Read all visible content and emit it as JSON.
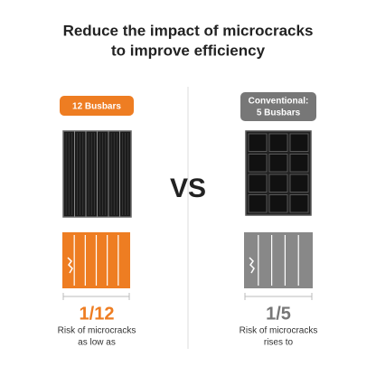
{
  "title": [
    "Reduce the impact of microcracks",
    "to improve efficiency"
  ],
  "left": {
    "badge": [
      "12 Busbars"
    ],
    "ratio": "1/12",
    "caption": [
      "Risk of microcracks",
      "as low as"
    ]
  },
  "center": "VS",
  "right": {
    "badge": [
      "Conventional:",
      "5 Busbars"
    ],
    "ratio": "1/5",
    "caption": [
      "Risk of microcracks",
      "rises to"
    ]
  }
}
